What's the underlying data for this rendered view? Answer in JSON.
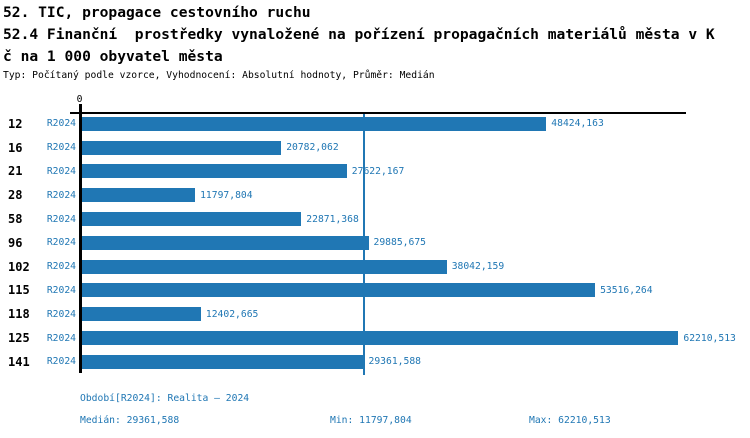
{
  "page": {
    "background_color": "#ffffff",
    "text_color": "#000000",
    "accent_color": "#2077b4"
  },
  "header": {
    "title_line1": "52. TIC, propagace cestovního ruchu",
    "title_line2": "52.4 Finanční  prostředky vynaložené na pořízení propagačních materiálů města v K",
    "title_line3": "č na 1 000 obyvatel města",
    "subtitle": "Typ: Počítaný podle vzorce, Vyhodnocení: Absolutní hodnoty, Průměr: Medián"
  },
  "chart_data": {
    "type": "bar",
    "orientation": "horizontal",
    "origin_label": "0",
    "series_label": "R2024",
    "categories": [
      "12",
      "16",
      "21",
      "28",
      "58",
      "96",
      "102",
      "115",
      "118",
      "125",
      "141"
    ],
    "values": [
      48424.163,
      20782.062,
      27622.167,
      11797.804,
      22871.368,
      29885.675,
      38042.159,
      53516.264,
      12402.665,
      62210.513,
      29361.588
    ],
    "value_labels": [
      "48424,163",
      "20782,062",
      "27622,167",
      "11797,804",
      "22871,368",
      "29885,675",
      "38042,159",
      "53516,264",
      "12402,665",
      "62210,513",
      "29361,588"
    ],
    "median_value": 29361.588,
    "min_value": 11797.804,
    "max_value": 62210.513,
    "xlim": [
      0,
      63000
    ],
    "grid": false,
    "bar_color": "#2077b4",
    "median_line_color": "#2077b4",
    "legend_position": "bottom"
  },
  "footer": {
    "period_label": "Období[R2024]: Realita – 2024",
    "median_label": "Medián: 29361,588",
    "min_label": "Min: 11797,804",
    "max_label": "Max: 62210,513"
  }
}
